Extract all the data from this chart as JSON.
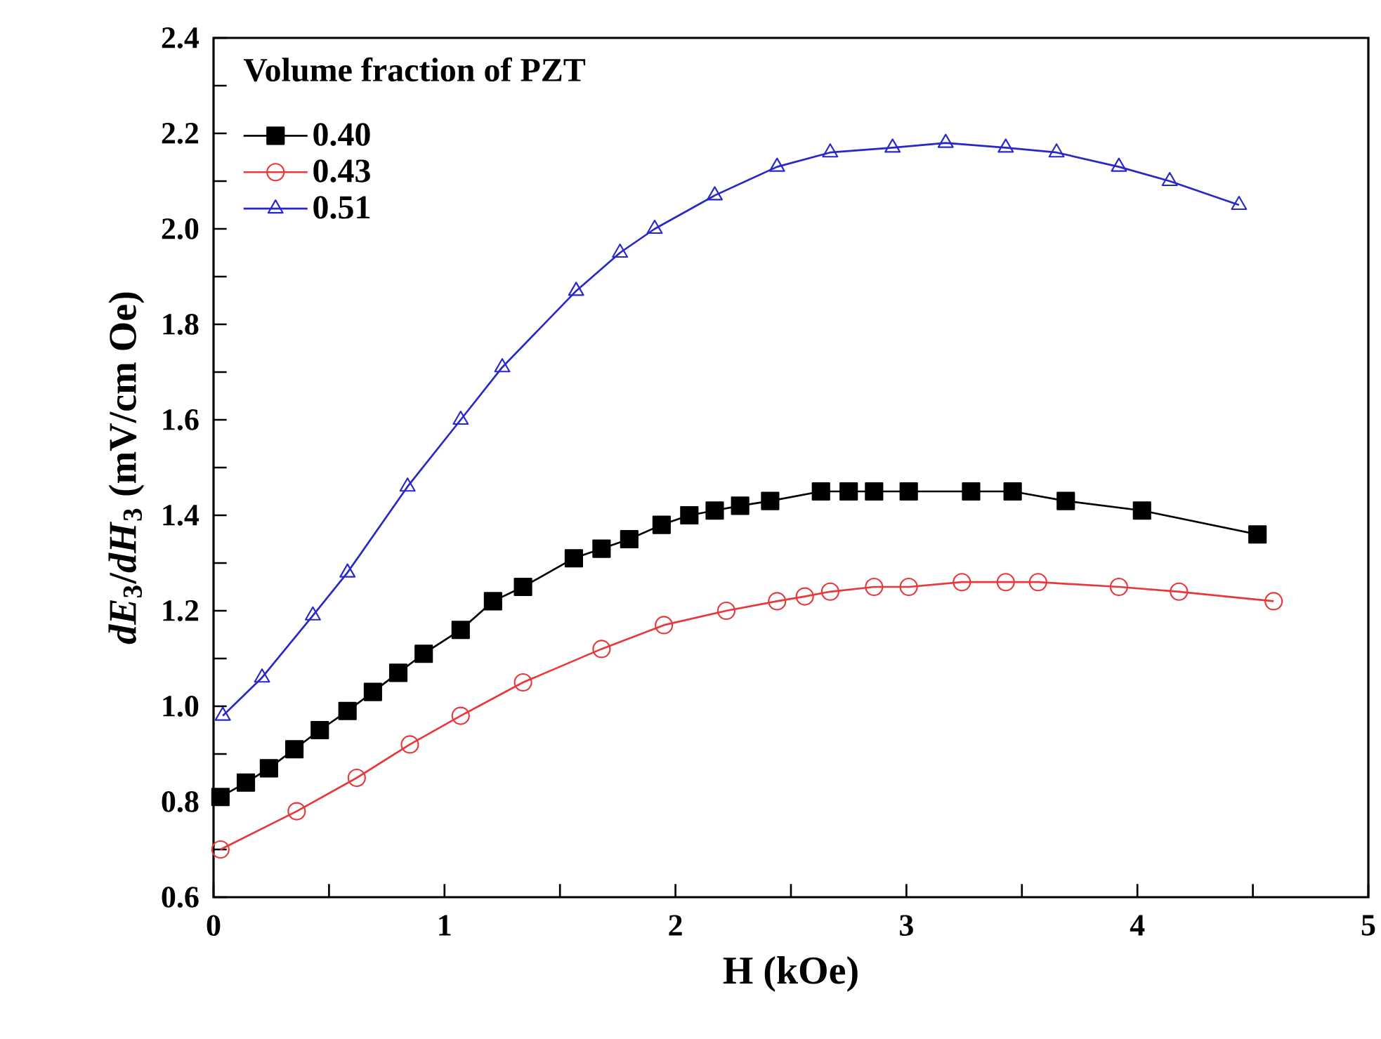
{
  "chart_data": {
    "type": "line",
    "xlabel": "H (kOe)",
    "ylabel": "*dE*$_{3}$/*dH*$_{3}$ (mV/cm Oe)",
    "legend_title": "Volume fraction of PZT",
    "legend": "top left",
    "grid": false,
    "line_style": "solid",
    "xlim": [
      0,
      5
    ],
    "ylim": [
      0.6,
      2.4
    ],
    "xticks": [
      0,
      {
        "value": 0.5,
        "label": null
      },
      1,
      {
        "value": 1.5,
        "label": null
      },
      2,
      {
        "value": 2.5,
        "label": null
      },
      3,
      {
        "value": 3.5,
        "label": null
      },
      4,
      {
        "value": 4.5,
        "label": null
      },
      5
    ],
    "yticks": [
      {
        "value": 0.6,
        "label": "0.6"
      },
      {
        "value": 0.7,
        "label": null
      },
      {
        "value": 0.8,
        "label": "0.8"
      },
      {
        "value": 0.9,
        "label": null
      },
      {
        "value": 1.0,
        "label": "1.0"
      },
      {
        "value": 1.1,
        "label": null
      },
      {
        "value": 1.2,
        "label": "1.2"
      },
      {
        "value": 1.3,
        "label": null
      },
      {
        "value": 1.4,
        "label": "1.4"
      },
      {
        "value": 1.5,
        "label": null
      },
      {
        "value": 1.6,
        "label": "1.6"
      },
      {
        "value": 1.7,
        "label": null
      },
      {
        "value": 1.8,
        "label": "1.8"
      },
      {
        "value": 1.9,
        "label": null
      },
      {
        "value": 2.0,
        "label": "2.0"
      },
      {
        "value": 2.1,
        "label": null
      },
      {
        "value": 2.2,
        "label": "2.2"
      },
      {
        "value": 2.3,
        "label": null
      },
      {
        "value": 2.4,
        "label": "2.4"
      }
    ],
    "series": [
      {
        "name": "0.40",
        "color": "#000000",
        "marker": "square",
        "x": [
          0.03,
          0.14,
          0.24,
          0.35,
          0.46,
          0.58,
          0.69,
          0.8,
          0.91,
          1.07,
          1.21,
          1.34,
          1.56,
          1.68,
          1.8,
          1.94,
          2.06,
          2.17,
          2.28,
          2.41,
          2.63,
          2.75,
          2.86,
          3.01,
          3.28,
          3.46,
          3.69,
          4.02,
          4.52
        ],
        "values": [
          0.81,
          0.84,
          0.87,
          0.91,
          0.95,
          0.99,
          1.03,
          1.07,
          1.11,
          1.16,
          1.22,
          1.25,
          1.31,
          1.33,
          1.35,
          1.38,
          1.4,
          1.41,
          1.42,
          1.43,
          1.45,
          1.45,
          1.45,
          1.45,
          1.45,
          1.45,
          1.43,
          1.41,
          1.36
        ]
      },
      {
        "name": "0.43",
        "color": "#e8383c",
        "marker": "circle",
        "x": [
          0.03,
          0.36,
          0.62,
          0.85,
          1.07,
          1.34,
          1.68,
          1.95,
          2.22,
          2.44,
          2.56,
          2.67,
          2.86,
          3.01,
          3.24,
          3.43,
          3.57,
          3.92,
          4.18,
          4.59
        ],
        "values": [
          0.7,
          0.78,
          0.85,
          0.92,
          0.98,
          1.05,
          1.12,
          1.17,
          1.2,
          1.22,
          1.23,
          1.24,
          1.25,
          1.25,
          1.26,
          1.26,
          1.26,
          1.25,
          1.24,
          1.22
        ]
      },
      {
        "name": "0.51",
        "color": "#2828c8",
        "marker": "triangle",
        "x": [
          0.04,
          0.21,
          0.43,
          0.58,
          0.84,
          1.07,
          1.25,
          1.57,
          1.76,
          1.91,
          2.17,
          2.44,
          2.67,
          2.94,
          3.17,
          3.43,
          3.65,
          3.92,
          4.14,
          4.44
        ],
        "values": [
          0.98,
          1.06,
          1.19,
          1.28,
          1.46,
          1.6,
          1.71,
          1.87,
          1.95,
          2.0,
          2.07,
          2.13,
          2.16,
          2.17,
          2.18,
          2.17,
          2.16,
          2.13,
          2.1,
          2.05
        ]
      }
    ]
  }
}
